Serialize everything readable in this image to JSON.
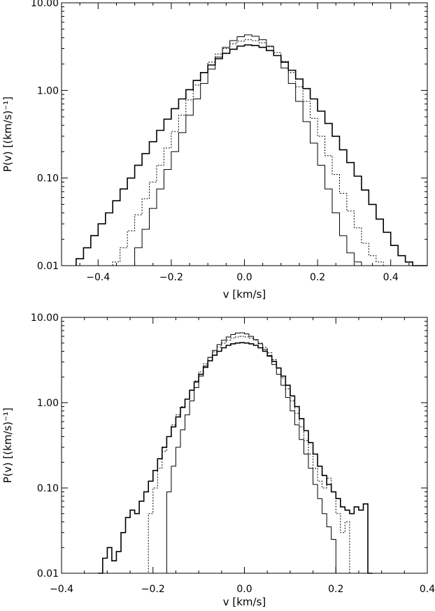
{
  "chart_data": [
    {
      "type": "line",
      "step": true,
      "xlabel": "v [km/s]",
      "ylabel": "P(v) [(km/s)⁻¹]",
      "xlim": [
        -0.5,
        0.5
      ],
      "ylim": [
        0.01,
        10
      ],
      "yscale": "log",
      "xticks": [
        -0.4,
        -0.2,
        0.0,
        0.2,
        0.4
      ],
      "xtick_labels": [
        "−0.4",
        "−0.2",
        "0.0",
        "0.2",
        "0.4"
      ],
      "yticks": [
        0.01,
        0.1,
        1,
        10
      ],
      "ytick_labels": [
        "0.01",
        "0.10",
        "1.00",
        "10.00"
      ],
      "series": [
        {
          "style": "solid-thick",
          "x": [
            -0.46,
            -0.44,
            -0.42,
            -0.4,
            -0.38,
            -0.36,
            -0.34,
            -0.32,
            -0.3,
            -0.28,
            -0.26,
            -0.24,
            -0.22,
            -0.2,
            -0.18,
            -0.16,
            -0.14,
            -0.12,
            -0.1,
            -0.08,
            -0.06,
            -0.04,
            -0.02,
            0.0,
            0.02,
            0.04,
            0.06,
            0.08,
            0.1,
            0.12,
            0.14,
            0.16,
            0.18,
            0.2,
            0.22,
            0.24,
            0.26,
            0.28,
            0.3,
            0.32,
            0.34,
            0.36,
            0.38,
            0.4,
            0.42,
            0.44,
            0.46,
            0.48
          ],
          "y": [
            0.012,
            0.016,
            0.022,
            0.03,
            0.04,
            0.055,
            0.075,
            0.1,
            0.14,
            0.19,
            0.26,
            0.35,
            0.47,
            0.62,
            0.8,
            1.02,
            1.3,
            1.6,
            1.95,
            2.3,
            2.65,
            2.95,
            3.2,
            3.3,
            3.25,
            3.1,
            2.85,
            2.5,
            2.1,
            1.7,
            1.35,
            1.05,
            0.8,
            0.58,
            0.42,
            0.3,
            0.21,
            0.15,
            0.105,
            0.073,
            0.05,
            0.034,
            0.024,
            0.017,
            0.013,
            0.011,
            0.01,
            0.01
          ]
        },
        {
          "style": "dotted",
          "x": [
            -0.36,
            -0.34,
            -0.32,
            -0.3,
            -0.28,
            -0.26,
            -0.24,
            -0.22,
            -0.2,
            -0.18,
            -0.16,
            -0.14,
            -0.12,
            -0.1,
            -0.08,
            -0.06,
            -0.04,
            -0.02,
            0.0,
            0.02,
            0.04,
            0.06,
            0.08,
            0.1,
            0.12,
            0.14,
            0.16,
            0.18,
            0.2,
            0.22,
            0.24,
            0.26,
            0.28,
            0.3,
            0.32,
            0.34,
            0.36,
            0.38
          ],
          "y": [
            0.011,
            0.016,
            0.025,
            0.038,
            0.058,
            0.09,
            0.14,
            0.22,
            0.34,
            0.52,
            0.78,
            1.15,
            1.6,
            2.1,
            2.6,
            3.0,
            3.4,
            3.65,
            3.8,
            3.7,
            3.5,
            3.15,
            2.7,
            2.15,
            1.6,
            1.1,
            0.75,
            0.48,
            0.3,
            0.18,
            0.11,
            0.067,
            0.042,
            0.027,
            0.018,
            0.013,
            0.011,
            0.01
          ]
        },
        {
          "style": "solid-thin",
          "x": [
            -0.32,
            -0.3,
            -0.28,
            -0.26,
            -0.24,
            -0.22,
            -0.2,
            -0.18,
            -0.16,
            -0.14,
            -0.12,
            -0.1,
            -0.08,
            -0.06,
            -0.04,
            -0.02,
            0.0,
            0.02,
            0.04,
            0.06,
            0.08,
            0.1,
            0.12,
            0.14,
            0.16,
            0.18,
            0.2,
            0.22,
            0.24,
            0.26,
            0.28,
            0.3,
            0.32
          ],
          "y": [
            0.01,
            0.016,
            0.026,
            0.045,
            0.075,
            0.125,
            0.2,
            0.33,
            0.52,
            0.8,
            1.2,
            1.75,
            2.4,
            3.1,
            3.7,
            4.1,
            4.3,
            4.15,
            3.8,
            3.2,
            2.5,
            1.8,
            1.2,
            0.75,
            0.44,
            0.25,
            0.14,
            0.075,
            0.04,
            0.022,
            0.014,
            0.011,
            0.01
          ]
        }
      ]
    },
    {
      "type": "line",
      "step": true,
      "xlabel": "v [km/s]",
      "ylabel": "P(v) [(km/s)⁻¹]",
      "xlim": [
        -0.4,
        0.4
      ],
      "ylim": [
        0.01,
        10
      ],
      "yscale": "log",
      "xticks": [
        -0.4,
        -0.2,
        0.0,
        0.2,
        0.4
      ],
      "xtick_labels": [
        "−0.4",
        "−0.2",
        "0.0",
        "0.2",
        "0.4"
      ],
      "yticks": [
        0.01,
        0.1,
        1,
        10
      ],
      "ytick_labels": [
        "0.01",
        "0.10",
        "1.00",
        "10.00"
      ],
      "series": [
        {
          "style": "solid-thick",
          "x": [
            -0.32,
            -0.31,
            -0.3,
            -0.29,
            -0.28,
            -0.27,
            -0.26,
            -0.25,
            -0.24,
            -0.23,
            -0.22,
            -0.21,
            -0.2,
            -0.19,
            -0.18,
            -0.17,
            -0.16,
            -0.15,
            -0.14,
            -0.13,
            -0.12,
            -0.11,
            -0.1,
            -0.09,
            -0.08,
            -0.07,
            -0.06,
            -0.05,
            -0.04,
            -0.03,
            -0.02,
            -0.01,
            0.0,
            0.01,
            0.02,
            0.03,
            0.04,
            0.05,
            0.06,
            0.07,
            0.08,
            0.09,
            0.1,
            0.11,
            0.12,
            0.13,
            0.14,
            0.15,
            0.16,
            0.17,
            0.18,
            0.19,
            0.2,
            0.21,
            0.22,
            0.23,
            0.24,
            0.25,
            0.26,
            0.27
          ],
          "y": [
            0.01,
            0.015,
            0.02,
            0.014,
            0.018,
            0.03,
            0.045,
            0.055,
            0.05,
            0.07,
            0.09,
            0.12,
            0.16,
            0.22,
            0.3,
            0.4,
            0.52,
            0.68,
            0.88,
            1.1,
            1.4,
            1.75,
            2.15,
            2.6,
            3.1,
            3.6,
            4.0,
            4.4,
            4.7,
            4.9,
            5.0,
            5.05,
            5.0,
            4.9,
            4.7,
            4.4,
            4.0,
            3.55,
            3.05,
            2.55,
            2.05,
            1.6,
            1.2,
            0.9,
            0.65,
            0.47,
            0.34,
            0.25,
            0.18,
            0.14,
            0.11,
            0.09,
            0.075,
            0.06,
            0.055,
            0.05,
            0.06,
            0.055,
            0.065,
            0.01
          ]
        },
        {
          "style": "dotted",
          "x": [
            -0.22,
            -0.21,
            -0.2,
            -0.19,
            -0.18,
            -0.17,
            -0.16,
            -0.15,
            -0.14,
            -0.13,
            -0.12,
            -0.11,
            -0.1,
            -0.09,
            -0.08,
            -0.07,
            -0.06,
            -0.05,
            -0.04,
            -0.03,
            -0.02,
            -0.01,
            0.0,
            0.01,
            0.02,
            0.03,
            0.04,
            0.05,
            0.06,
            0.07,
            0.08,
            0.09,
            0.1,
            0.11,
            0.12,
            0.13,
            0.14,
            0.15,
            0.16,
            0.17,
            0.18,
            0.19,
            0.2,
            0.21,
            0.22,
            0.23
          ],
          "y": [
            0.01,
            0.05,
            0.1,
            0.17,
            0.27,
            0.4,
            0.55,
            0.72,
            0.9,
            1.1,
            1.4,
            1.8,
            2.3,
            2.85,
            3.4,
            3.95,
            4.5,
            5.0,
            5.4,
            5.7,
            5.9,
            6.0,
            5.9,
            5.7,
            5.4,
            5.0,
            4.45,
            3.85,
            3.2,
            2.55,
            1.95,
            1.45,
            1.05,
            0.75,
            0.52,
            0.36,
            0.25,
            0.17,
            0.12,
            0.1,
            0.13,
            0.09,
            0.05,
            0.03,
            0.04,
            0.01
          ]
        },
        {
          "style": "solid-thin",
          "x": [
            -0.18,
            -0.17,
            -0.16,
            -0.15,
            -0.14,
            -0.13,
            -0.12,
            -0.11,
            -0.1,
            -0.09,
            -0.08,
            -0.07,
            -0.06,
            -0.05,
            -0.04,
            -0.03,
            -0.02,
            -0.01,
            0.0,
            0.01,
            0.02,
            0.03,
            0.04,
            0.05,
            0.06,
            0.07,
            0.08,
            0.09,
            0.1,
            0.11,
            0.12,
            0.13,
            0.14,
            0.15,
            0.16,
            0.17,
            0.18,
            0.19,
            0.2
          ],
          "y": [
            0.01,
            0.09,
            0.18,
            0.3,
            0.48,
            0.72,
            1.05,
            1.5,
            2.05,
            2.7,
            3.4,
            4.1,
            4.8,
            5.4,
            5.9,
            6.3,
            6.55,
            6.6,
            6.4,
            6.0,
            5.5,
            4.9,
            4.2,
            3.5,
            2.8,
            2.15,
            1.6,
            1.15,
            0.8,
            0.55,
            0.37,
            0.25,
            0.17,
            0.11,
            0.075,
            0.05,
            0.035,
            0.025,
            0.01
          ]
        }
      ]
    }
  ]
}
